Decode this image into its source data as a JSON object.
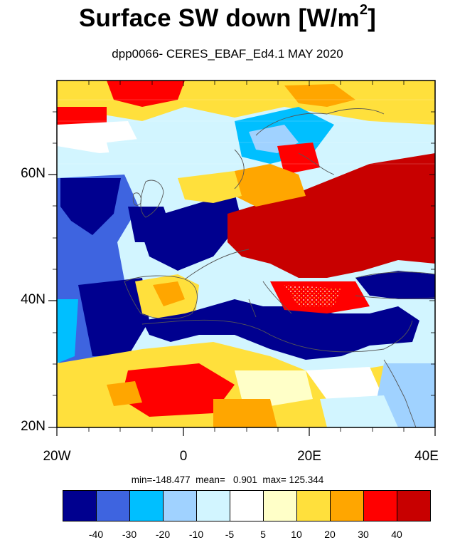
{
  "title": {
    "main": "Surface SW down [W/m",
    "sup": "2",
    "close": "]"
  },
  "subtitle": "dpp0066- CERES_EBAF_Ed4.1  MAY 2020",
  "axes": {
    "y_ticks": [
      "60N",
      "40N",
      "20N"
    ],
    "x_ticks": [
      "20W",
      "0",
      "20E",
      "40E"
    ]
  },
  "stats": {
    "text": "min=-148.477  mean=   0.901  max= 125.344"
  },
  "colorbar": {
    "colors": [
      "#00008f",
      "#3e64e0",
      "#00bfff",
      "#a0d2ff",
      "#d2f5ff",
      "#ffffff",
      "#ffffc8",
      "#ffe03c",
      "#ffa600",
      "#ff0000",
      "#c80000"
    ],
    "labels": [
      "-40",
      "-30",
      "-20",
      "-10",
      "-5",
      "5",
      "10",
      "20",
      "30",
      "40"
    ]
  }
}
